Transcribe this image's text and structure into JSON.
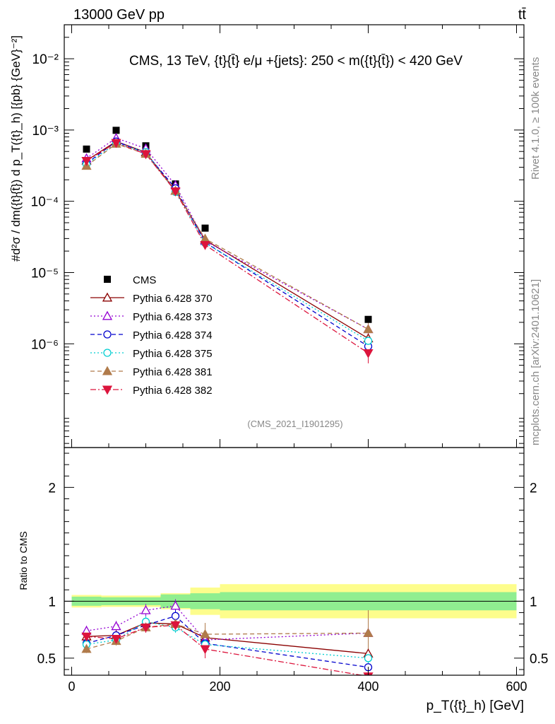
{
  "header": {
    "energy_label": "13000 GeV pp",
    "process_label": "tt̄"
  },
  "side_texts": {
    "rivet": "Rivet 4.1.0, ≥ 100k events",
    "source": "mcplots.cern.ch [arXiv:2401.10621]"
  },
  "watermark": "(CMS_2021_I1901295)",
  "chart_data": {
    "type": "scatter",
    "title": "CMS, 13 TeV, {t}{t̄} e/μ +{jets}: 250 < m({t}{t̄}) < 420 GeV",
    "xlabel": "p_T({t}_h) [GeV]",
    "ylabel": "#d²σ / dm({t}{t̄}) d p_T({t}_h) [{pb} {GeV}⁻²]",
    "ratio_ylabel": "Ratio to CMS",
    "xlim": [
      -10,
      610
    ],
    "ylim_main": [
      3.5e-08,
      0.03
    ],
    "ylim_ratio": [
      0.35,
      2.35
    ],
    "x_ticks": [
      "0",
      "200",
      "400",
      "600"
    ],
    "y_ticks_main": [
      "10⁻⁶",
      "10⁻⁵",
      "10⁻⁴",
      "10⁻³",
      "10⁻²"
    ],
    "y_ticks_ratio": [
      "0.5",
      "1",
      "2"
    ],
    "bins": [
      [
        0,
        40
      ],
      [
        40,
        80
      ],
      [
        80,
        120
      ],
      [
        120,
        160
      ],
      [
        160,
        200
      ],
      [
        200,
        600
      ]
    ],
    "x": [
      20,
      60,
      100,
      140,
      180,
      400
    ],
    "ref_band_inner": [
      0.04,
      0.035,
      0.035,
      0.06,
      0.07,
      0.08
    ],
    "ref_band_outer": [
      0.055,
      0.05,
      0.05,
      0.07,
      0.12,
      0.15
    ],
    "series": [
      {
        "name": "CMS",
        "marker": "square",
        "line": "none",
        "color": "#000000",
        "values": [
          0.00054,
          0.00099,
          0.0006,
          0.000175,
          4.2e-05,
          2.2e-06
        ],
        "ratio": [
          1,
          1,
          1,
          1,
          1,
          1
        ]
      },
      {
        "name": "Pythia 6.428 370",
        "marker": "triangle-up-open",
        "line": "solid",
        "color": "#8b0000",
        "values": [
          0.000372,
          0.000693,
          0.000486,
          0.00014,
          2.87e-05,
          1.19e-06
        ],
        "ratio": [
          0.69,
          0.7,
          0.81,
          0.8,
          0.68,
          0.54
        ]
      },
      {
        "name": "Pythia 6.428 373",
        "marker": "triangle-up-open",
        "line": "dotted",
        "color": "#9400d3",
        "values": [
          0.0004,
          0.00077,
          0.00055,
          0.000168,
          2.77e-05,
          1.6e-06
        ],
        "ratio": [
          0.74,
          0.78,
          0.92,
          0.96,
          0.66,
          0.72
        ]
      },
      {
        "name": "Pythia 6.428 374",
        "marker": "circle-open",
        "line": "dashed",
        "color": "#0000cd",
        "values": [
          0.00034,
          0.00069,
          0.000474,
          0.000152,
          2.65e-05,
          9.2e-07
        ],
        "ratio": [
          0.63,
          0.7,
          0.79,
          0.87,
          0.63,
          0.42
        ]
      },
      {
        "name": "Pythia 6.428 375",
        "marker": "circle-open",
        "line": "dotted",
        "color": "#00ced1",
        "values": [
          0.00033,
          0.00065,
          0.00049,
          0.000135,
          2.6e-05,
          1.1e-06
        ],
        "ratio": [
          0.62,
          0.66,
          0.82,
          0.77,
          0.62,
          0.5
        ]
      },
      {
        "name": "Pythia 6.428 381",
        "marker": "triangle-up-filled",
        "line": "dashed",
        "color": "#b07b4b",
        "values": [
          0.000313,
          0.00064,
          0.000462,
          0.00014,
          2.98e-05,
          1.6e-06
        ],
        "ratio": [
          0.58,
          0.65,
          0.77,
          0.8,
          0.71,
          0.72
        ]
      },
      {
        "name": "Pythia 6.428 382",
        "marker": "triangle-down-filled",
        "line": "dashdot",
        "color": "#dc143c",
        "values": [
          0.00037,
          0.00066,
          0.00046,
          0.000138,
          2.44e-05,
          7.4e-07
        ],
        "ratio": [
          0.69,
          0.67,
          0.77,
          0.79,
          0.58,
          0.34
        ]
      }
    ]
  }
}
